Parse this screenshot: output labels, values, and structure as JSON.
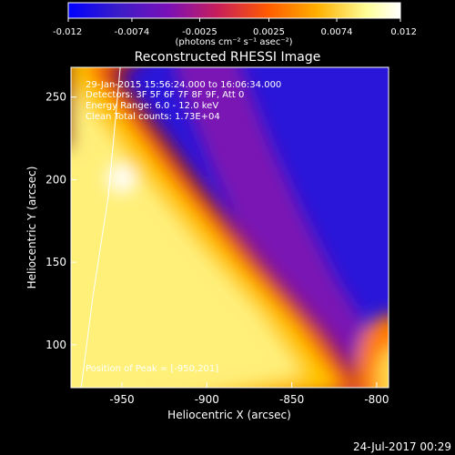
{
  "chart_data": {
    "type": "heatmap",
    "title": "Reconstructed RHESSI Image",
    "xlabel": "Heliocentric X (arcsec)",
    "ylabel": "Heliocentric Y (arcsec)",
    "xlim": [
      -980,
      -793
    ],
    "ylim": [
      74,
      268
    ],
    "xticks": [
      -950,
      -900,
      -850,
      -800
    ],
    "xtick_labels": [
      "-950",
      "-900",
      "-850",
      "-800"
    ],
    "yticks": [
      100,
      150,
      200,
      250
    ],
    "ytick_labels": [
      "100",
      "150",
      "200",
      "250"
    ],
    "colorbar": {
      "range": [
        -0.012,
        0.012
      ],
      "ticks": [
        -0.012,
        -0.0074,
        -0.0025,
        0.0025,
        0.0074,
        0.012
      ],
      "tick_labels": [
        "-0.012",
        "-0.0074",
        "-0.0025",
        "0.0025",
        "0.0074",
        "0.012"
      ],
      "label": "(photons cm⁻² s⁻¹ asec⁻²)",
      "colors": [
        "#0000ff",
        "#3a1cc8",
        "#7a10b8",
        "#c81e5a",
        "#ff5a00",
        "#ffb000",
        "#ffff9a",
        "#ffffff"
      ]
    },
    "annotations": [
      "29-Jan-2015 15:56:24.000 to 16:06:34.000",
      "Detectors: 3F 5F 6F 7F 8F 9F, Att 0",
      "Energy Range: 6.0 - 12.0 keV",
      "Clean    Total counts: 1.73E+04",
      "Position of Peak = [-950,201]"
    ],
    "peak": {
      "x": -950,
      "y": 201
    },
    "limb": [
      [
        -974,
        74
      ],
      [
        -967,
        130
      ],
      [
        -958,
        190
      ],
      [
        -951,
        268
      ]
    ],
    "bright_ridge": [
      [
        -980,
        268
      ],
      [
        -930,
        200
      ],
      [
        -890,
        150
      ],
      [
        -855,
        110
      ],
      [
        -830,
        74
      ]
    ],
    "dark_channel": [
      [
        -900,
        268
      ],
      [
        -880,
        215
      ],
      [
        -860,
        170
      ],
      [
        -840,
        130
      ],
      [
        -815,
        90
      ],
      [
        -800,
        74
      ]
    ]
  },
  "footer": {
    "timestamp": "24-Jul-2017 00:29"
  }
}
